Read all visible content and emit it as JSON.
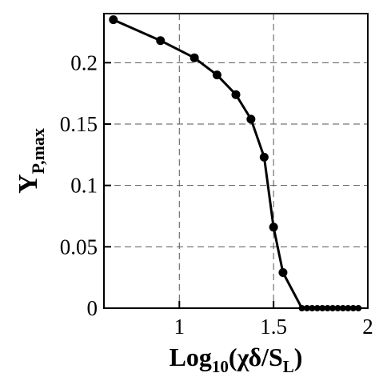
{
  "chart_data": {
    "type": "line",
    "xlabel": {
      "main": "Log",
      "sub": "10",
      "rest": "(χδ/S",
      "sub2": "L",
      "close": ")"
    },
    "ylabel": {
      "main": "Y",
      "sub": "P,max"
    },
    "xlim": [
      0.6,
      2.0
    ],
    "ylim": [
      0,
      0.24
    ],
    "x_ticks": [
      1,
      1.5,
      2
    ],
    "x_tick_labels": [
      "1",
      "1.5",
      "2"
    ],
    "y_ticks": [
      0,
      0.05,
      0.1,
      0.15,
      0.2
    ],
    "y_tick_labels": [
      "0",
      "0.05",
      "0.1",
      "0.15",
      "0.2"
    ],
    "grid": true,
    "line_color": "#000000",
    "series": [
      {
        "x": [
          0.65,
          0.9,
          1.08,
          1.2,
          1.3,
          1.38,
          1.45,
          1.5,
          1.55,
          1.65,
          1.75,
          1.85,
          1.95
        ],
        "y": [
          0.235,
          0.218,
          0.204,
          0.19,
          0.174,
          0.154,
          0.123,
          0.066,
          0.029,
          0,
          0,
          0,
          0
        ],
        "markers": [
          true,
          true,
          true,
          true,
          true,
          true,
          true,
          true,
          true,
          false,
          false,
          false,
          false
        ]
      }
    ],
    "zero_tail": {
      "x_start": 1.65,
      "x_end": 1.95,
      "y": 0,
      "n_markers": 12
    }
  }
}
